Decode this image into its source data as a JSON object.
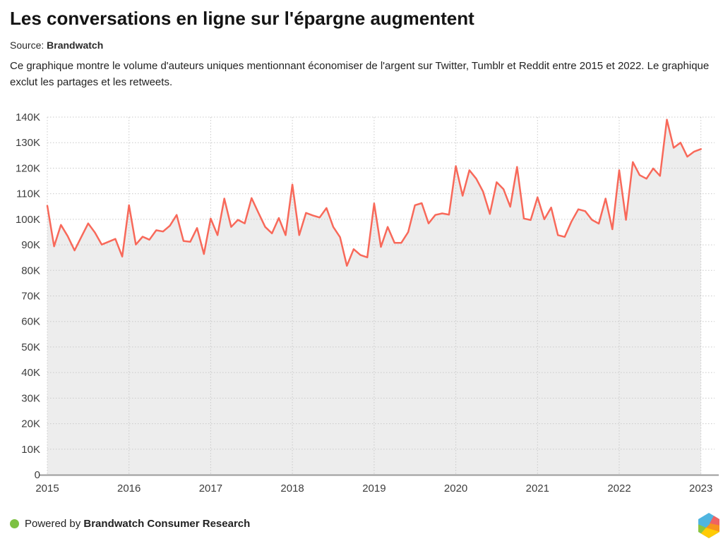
{
  "header": {
    "title": "Les conversations en ligne sur l'épargne augmentent",
    "source_label": "Source:",
    "source_value": "Brandwatch",
    "description": "Ce graphique montre le volume d'auteurs uniques mentionnant économiser de l'argent sur Twitter, Tumblr et Reddit entre 2015 et 2022. Le graphique exclut les partages et les retweets."
  },
  "chart_data": {
    "type": "line",
    "title": "Les conversations en ligne sur l'épargne augmentent",
    "x_unit": "month",
    "x_start": "2015-01",
    "x_end": "2023-01",
    "x_tick_labels": [
      "2015",
      "2016",
      "2017",
      "2018",
      "2019",
      "2020",
      "2021",
      "2022",
      "2023"
    ],
    "y_tick_labels": [
      "0",
      "10K",
      "20K",
      "30K",
      "40K",
      "50K",
      "60K",
      "70K",
      "80K",
      "90K",
      "100K",
      "110K",
      "120K",
      "130K",
      "140K"
    ],
    "ylim_thousands": [
      0,
      140
    ],
    "grid": "dotted",
    "legend": "none",
    "series": [
      {
        "name": "Volume d'auteurs uniques mentionnant économiser de l'argent",
        "values_thousands": [
          105.3,
          89.4,
          97.8,
          93.4,
          87.8,
          93.1,
          98.4,
          94.8,
          90.1,
          91.2,
          92.3,
          85.4,
          105.5,
          90.1,
          93.2,
          92.0,
          95.7,
          95.2,
          97.5,
          101.7,
          91.5,
          91.2,
          96.6,
          86.4,
          100.3,
          93.8,
          108.1,
          97.0,
          99.8,
          98.4,
          108.3,
          102.6,
          97.0,
          94.5,
          100.5,
          93.8,
          113.6,
          93.8,
          102.5,
          101.5,
          100.7,
          104.4,
          97.0,
          93.0,
          81.8,
          88.3,
          86.0,
          85.1,
          106.2,
          89.2,
          97.0,
          90.8,
          90.8,
          95.0,
          105.5,
          106.3,
          98.4,
          101.7,
          102.3,
          101.8,
          120.8,
          109.2,
          119.2,
          115.9,
          110.9,
          102.1,
          114.5,
          111.8,
          104.9,
          120.5,
          100.3,
          99.7,
          108.6,
          100.0,
          104.6,
          93.8,
          93.1,
          99.2,
          103.9,
          103.2,
          99.8,
          98.3,
          108.1,
          96.1,
          119.2,
          99.8,
          122.4,
          117.3,
          115.9,
          119.9,
          117.0,
          139.0,
          128.0,
          130.0,
          124.5,
          126.5,
          127.5
        ]
      }
    ],
    "line_color": "#f8695a",
    "area_color": "#ededed",
    "grid_color": "#c9c9c9",
    "axis_color": "#9b9b9b",
    "tick_label_color": "#3d3d3d"
  },
  "footer": {
    "powered_by_label": "Powered by",
    "brand": "Brandwatch Consumer Research",
    "dot_color": "#7dc142",
    "logo": "brandwatch-hexagon-logo"
  }
}
